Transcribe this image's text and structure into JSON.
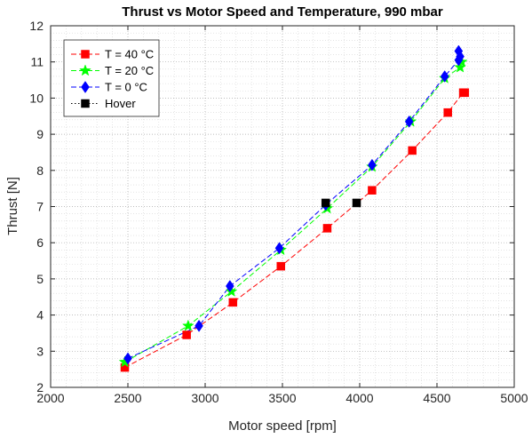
{
  "chart_data": {
    "type": "line",
    "title": "Thrust vs Motor Speed and Temperature, 990 mbar",
    "xlabel": "Motor speed [rpm]",
    "ylabel": "Thrust [N]",
    "xlim": [
      2000,
      5000
    ],
    "ylim": [
      2,
      12
    ],
    "xticks": [
      2000,
      2500,
      3000,
      3500,
      4000,
      4500,
      5000
    ],
    "yticks": [
      2,
      3,
      4,
      5,
      6,
      7,
      8,
      9,
      10,
      11,
      12
    ],
    "grid": "on (dotted, major and minor)",
    "legend_position": "top-left",
    "series": [
      {
        "name": "T = 40 °C",
        "color": "#ff0000",
        "line_style": "dashed",
        "marker": "square",
        "x": [
          2480,
          2880,
          3180,
          3490,
          3790,
          4080,
          4340,
          4570,
          4670,
          4680
        ],
        "y": [
          2.55,
          3.45,
          4.35,
          5.35,
          6.4,
          7.45,
          8.55,
          9.6,
          10.15,
          10.15
        ]
      },
      {
        "name": "T = 20 °C",
        "color": "#00ff00",
        "line_style": "dashed",
        "marker": "star",
        "x": [
          2480,
          2890,
          3170,
          3490,
          3790,
          4080,
          4330,
          4550,
          4650,
          4660
        ],
        "y": [
          2.7,
          3.7,
          4.65,
          5.8,
          6.95,
          8.1,
          9.35,
          10.55,
          10.85,
          11.0
        ]
      },
      {
        "name": "T = 0 °C",
        "color": "#0000ff",
        "line_style": "dashed",
        "marker": "diamond",
        "x": [
          2500,
          2960,
          3160,
          3480,
          3780,
          4080,
          4320,
          4550,
          4640,
          4640,
          4650
        ],
        "y": [
          2.8,
          3.7,
          4.8,
          5.85,
          7.05,
          8.15,
          9.35,
          10.6,
          11.05,
          11.3,
          11.15
        ]
      },
      {
        "name": "Hover",
        "color": "#000000",
        "line_style": "dotted",
        "marker": "square",
        "x": [
          3780,
          3980
        ],
        "y": [
          7.1,
          7.1
        ]
      }
    ]
  }
}
